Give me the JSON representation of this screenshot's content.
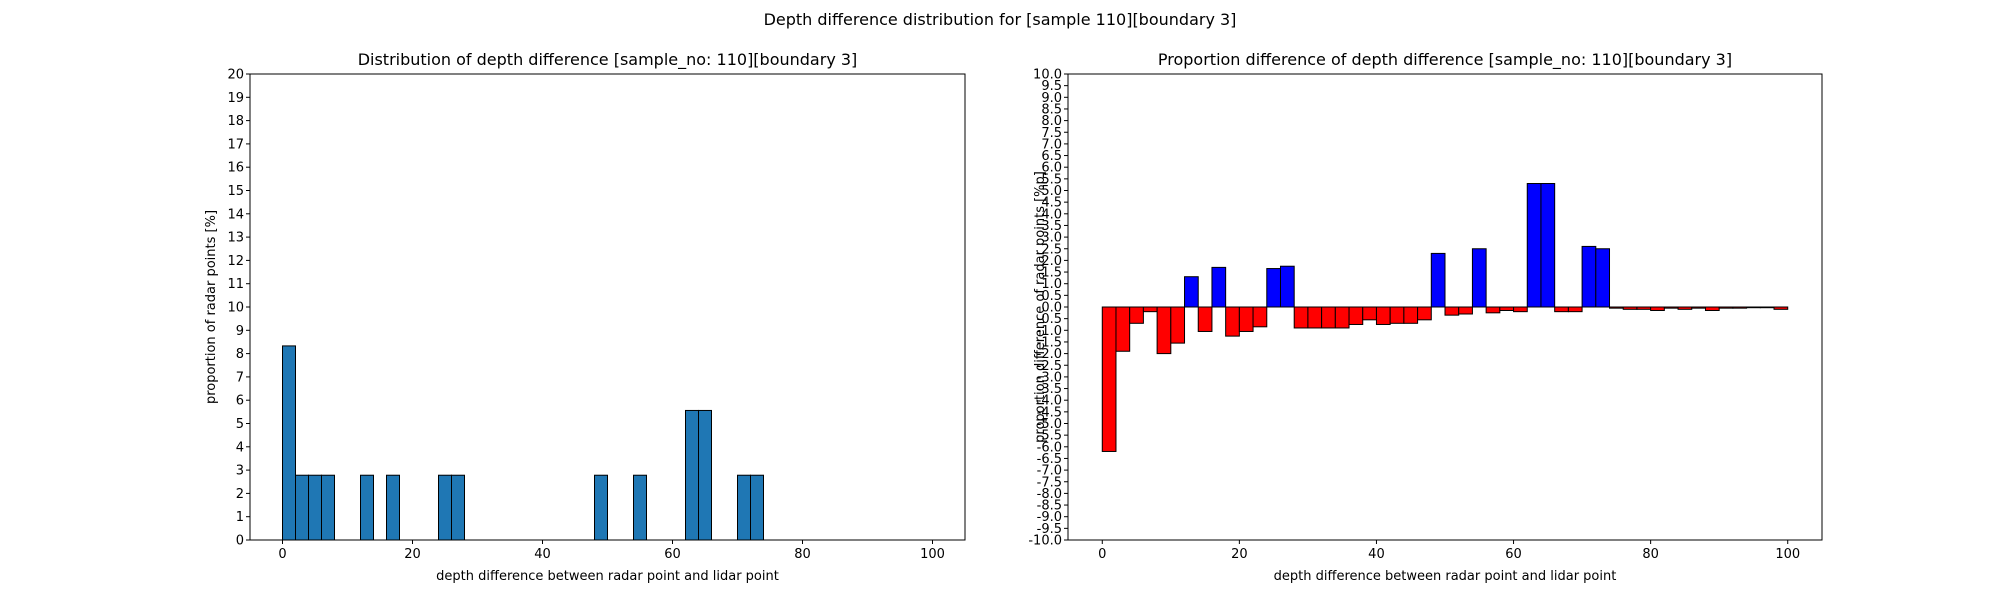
{
  "figure": {
    "suptitle": "Depth difference distribution for [sample 110][boundary 3]"
  },
  "chart_data": [
    {
      "type": "bar",
      "title": "Distribution of depth difference [sample_no: 110][boundary 3]",
      "xlabel": "depth difference between radar point and lidar point",
      "ylabel": "proportion of radar points [%]",
      "xlim": [
        -5,
        105
      ],
      "ylim": [
        0,
        20
      ],
      "xticks": [
        0,
        20,
        40,
        60,
        80,
        100
      ],
      "yticks": [
        0,
        1,
        2,
        3,
        4,
        5,
        6,
        7,
        8,
        9,
        10,
        11,
        12,
        13,
        14,
        15,
        16,
        17,
        18,
        19,
        20
      ],
      "bar_width": 2,
      "bar_color": "#1f77b4",
      "edge_color": "#000000",
      "bars": [
        {
          "x": 1,
          "value": 8.33
        },
        {
          "x": 3,
          "value": 2.78
        },
        {
          "x": 5,
          "value": 2.78
        },
        {
          "x": 7,
          "value": 2.78
        },
        {
          "x": 13,
          "value": 2.78
        },
        {
          "x": 17,
          "value": 2.78
        },
        {
          "x": 25,
          "value": 2.78
        },
        {
          "x": 27,
          "value": 2.78
        },
        {
          "x": 49,
          "value": 2.78
        },
        {
          "x": 55,
          "value": 2.78
        },
        {
          "x": 63,
          "value": 5.56
        },
        {
          "x": 65,
          "value": 5.56
        },
        {
          "x": 71,
          "value": 2.78
        },
        {
          "x": 73,
          "value": 2.78
        }
      ]
    },
    {
      "type": "bar",
      "title": "Proportion difference of depth difference [sample_no: 110][boundary 3]",
      "xlabel": "depth difference between radar point and lidar point",
      "ylabel": "proportion difference of radar points [%p]",
      "xlim": [
        -5,
        105
      ],
      "ylim": [
        -10,
        10
      ],
      "xticks": [
        0,
        20,
        40,
        60,
        80,
        100
      ],
      "yticks": [
        -10.0,
        -9.5,
        -9.0,
        -8.5,
        -8.0,
        -7.5,
        -7.0,
        -6.5,
        -6.0,
        -5.5,
        -5.0,
        -4.5,
        -4.0,
        -3.5,
        -3.0,
        -2.5,
        -2.0,
        -1.5,
        -1.0,
        -0.5,
        0.0,
        0.5,
        1.0,
        1.5,
        2.0,
        2.5,
        3.0,
        3.5,
        4.0,
        4.5,
        5.0,
        5.5,
        6.0,
        6.5,
        7.0,
        7.5,
        8.0,
        8.5,
        9.0,
        9.5,
        10.0
      ],
      "bar_width": 2,
      "positive_color": "#0000ff",
      "negative_color": "#ff0000",
      "edge_color": "#000000",
      "bars": [
        {
          "x": 1,
          "value": -6.2
        },
        {
          "x": 3,
          "value": -1.9
        },
        {
          "x": 5,
          "value": -0.7
        },
        {
          "x": 7,
          "value": -0.2
        },
        {
          "x": 9,
          "value": -2.0
        },
        {
          "x": 11,
          "value": -1.55
        },
        {
          "x": 13,
          "value": 1.3
        },
        {
          "x": 15,
          "value": -1.05
        },
        {
          "x": 17,
          "value": 1.7
        },
        {
          "x": 19,
          "value": -1.25
        },
        {
          "x": 21,
          "value": -1.05
        },
        {
          "x": 23,
          "value": -0.85
        },
        {
          "x": 25,
          "value": 1.65
        },
        {
          "x": 27,
          "value": 1.75
        },
        {
          "x": 29,
          "value": -0.9
        },
        {
          "x": 31,
          "value": -0.9
        },
        {
          "x": 33,
          "value": -0.9
        },
        {
          "x": 35,
          "value": -0.9
        },
        {
          "x": 37,
          "value": -0.75
        },
        {
          "x": 39,
          "value": -0.55
        },
        {
          "x": 41,
          "value": -0.75
        },
        {
          "x": 43,
          "value": -0.7
        },
        {
          "x": 45,
          "value": -0.7
        },
        {
          "x": 47,
          "value": -0.55
        },
        {
          "x": 49,
          "value": 2.3
        },
        {
          "x": 51,
          "value": -0.35
        },
        {
          "x": 53,
          "value": -0.3
        },
        {
          "x": 55,
          "value": 2.5
        },
        {
          "x": 57,
          "value": -0.25
        },
        {
          "x": 59,
          "value": -0.15
        },
        {
          "x": 61,
          "value": -0.2
        },
        {
          "x": 63,
          "value": 5.3
        },
        {
          "x": 65,
          "value": 5.3
        },
        {
          "x": 67,
          "value": -0.2
        },
        {
          "x": 69,
          "value": -0.2
        },
        {
          "x": 71,
          "value": 2.6
        },
        {
          "x": 73,
          "value": 2.5
        },
        {
          "x": 75,
          "value": -0.05
        },
        {
          "x": 77,
          "value": -0.1
        },
        {
          "x": 79,
          "value": -0.1
        },
        {
          "x": 81,
          "value": -0.15
        },
        {
          "x": 83,
          "value": -0.05
        },
        {
          "x": 85,
          "value": -0.1
        },
        {
          "x": 87,
          "value": -0.05
        },
        {
          "x": 89,
          "value": -0.15
        },
        {
          "x": 91,
          "value": -0.05
        },
        {
          "x": 93,
          "value": -0.05
        },
        {
          "x": 95,
          "value": -0.03
        },
        {
          "x": 97,
          "value": -0.03
        },
        {
          "x": 99,
          "value": -0.1
        }
      ]
    }
  ]
}
